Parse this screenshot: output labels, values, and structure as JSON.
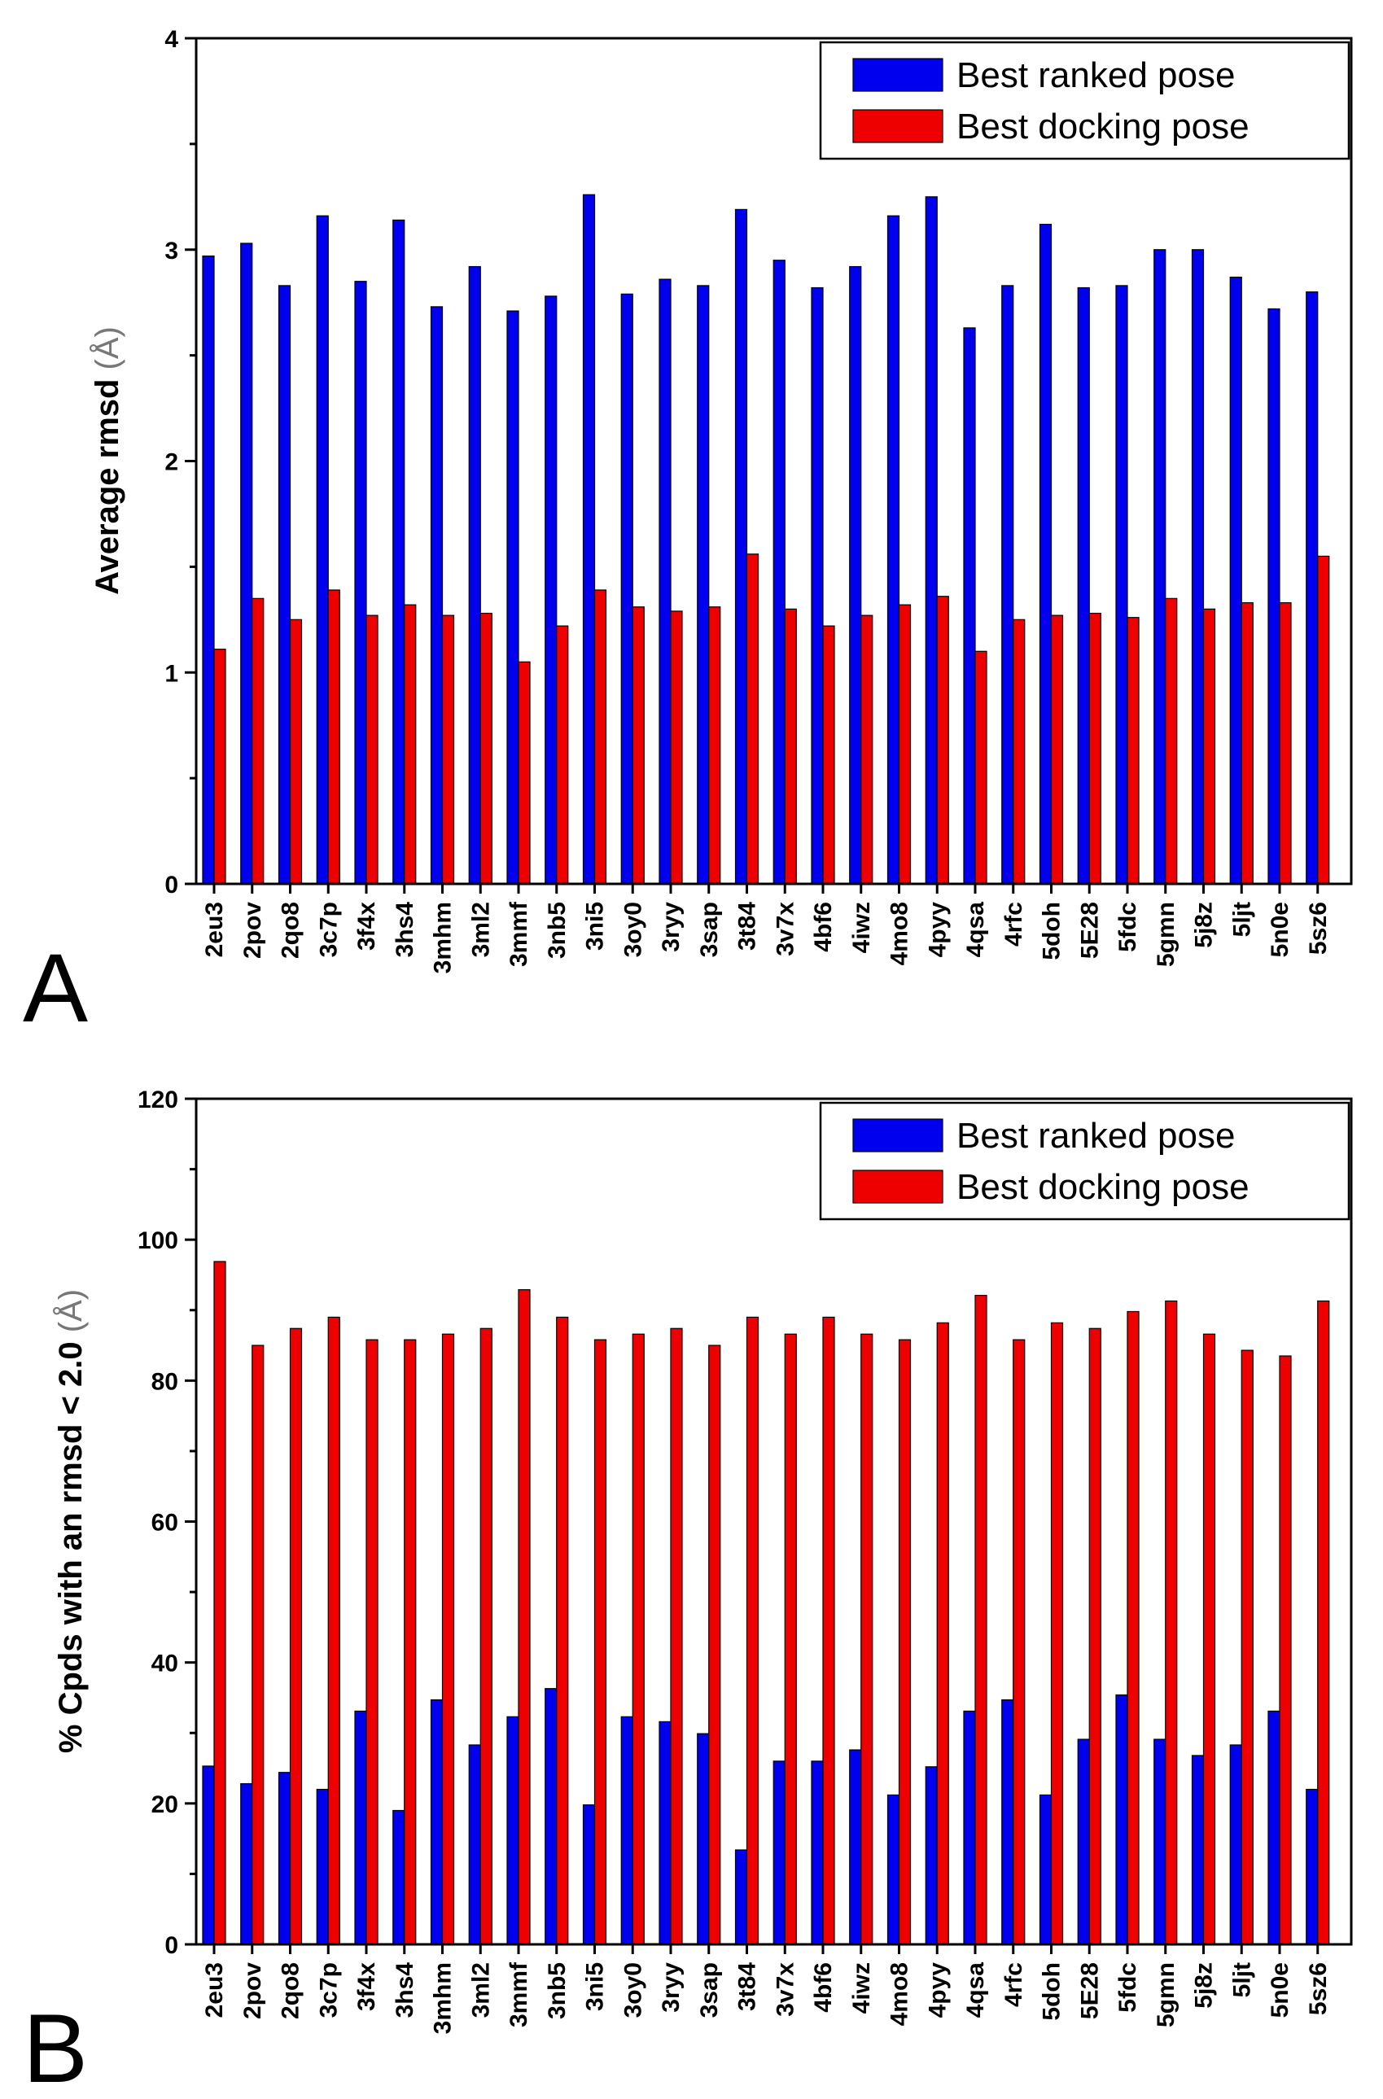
{
  "chart_data": [
    {
      "type": "bar",
      "panel": "A",
      "ylabel": "Average rmsd",
      "ylabel_unit": "(Å)",
      "ylim": [
        0,
        4
      ],
      "yticks": [
        0,
        1,
        2,
        3,
        4
      ],
      "legend_position": "top-right",
      "categories": [
        "2eu3",
        "2pov",
        "2qo8",
        "3c7p",
        "3f4x",
        "3hs4",
        "3mhm",
        "3ml2",
        "3mmf",
        "3nb5",
        "3ni5",
        "3oy0",
        "3ryy",
        "3sap",
        "3t84",
        "3v7x",
        "4bf6",
        "4iwz",
        "4mo8",
        "4pyy",
        "4qsa",
        "4rfc",
        "5doh",
        "5E28",
        "5fdc",
        "5gmn",
        "5j8z",
        "5ljt",
        "5n0e",
        "5sz6"
      ],
      "series": [
        {
          "name": "Best ranked pose",
          "color": "#0000ee",
          "values": [
            2.97,
            3.03,
            2.83,
            3.16,
            2.85,
            3.14,
            2.73,
            2.92,
            2.71,
            2.78,
            3.26,
            2.79,
            2.86,
            2.83,
            3.19,
            2.95,
            2.82,
            2.92,
            3.16,
            3.25,
            2.63,
            2.83,
            3.12,
            2.82,
            2.83,
            3.0,
            3.0,
            2.87,
            2.72,
            2.8
          ]
        },
        {
          "name": "Best docking pose",
          "color": "#ee0000",
          "values": [
            1.11,
            1.35,
            1.25,
            1.39,
            1.27,
            1.32,
            1.27,
            1.28,
            1.05,
            1.22,
            1.39,
            1.31,
            1.29,
            1.31,
            1.56,
            1.3,
            1.22,
            1.27,
            1.32,
            1.36,
            1.1,
            1.25,
            1.27,
            1.28,
            1.26,
            1.35,
            1.3,
            1.33,
            1.33,
            1.55
          ]
        }
      ]
    },
    {
      "type": "bar",
      "panel": "B",
      "ylabel": "% Cpds with an rmsd < 2.0",
      "ylabel_unit": "(Å)",
      "ylim": [
        0,
        120
      ],
      "yticks": [
        0,
        20,
        40,
        60,
        80,
        100,
        120
      ],
      "legend_position": "top-right",
      "categories": [
        "2eu3",
        "2pov",
        "2qo8",
        "3c7p",
        "3f4x",
        "3hs4",
        "3mhm",
        "3ml2",
        "3mmf",
        "3nb5",
        "3ni5",
        "3oy0",
        "3ryy",
        "3sap",
        "3t84",
        "3v7x",
        "4bf6",
        "4iwz",
        "4mo8",
        "4pyy",
        "4qsa",
        "4rfc",
        "5doh",
        "5E28",
        "5fdc",
        "5gmn",
        "5j8z",
        "5ljt",
        "5n0e",
        "5sz6"
      ],
      "series": [
        {
          "name": "Best ranked pose",
          "color": "#0000ee",
          "values": [
            25.3,
            22.8,
            24.4,
            22.0,
            33.1,
            19.0,
            34.7,
            28.3,
            32.3,
            36.3,
            19.8,
            32.3,
            31.6,
            29.9,
            13.4,
            26.0,
            26.0,
            27.6,
            21.2,
            25.2,
            33.1,
            34.7,
            21.2,
            29.1,
            35.4,
            29.1,
            26.8,
            28.3,
            33.1,
            22.0
          ]
        },
        {
          "name": "Best docking pose",
          "color": "#ee0000",
          "values": [
            96.9,
            85.0,
            87.4,
            89.0,
            85.8,
            85.8,
            86.6,
            87.4,
            92.9,
            89.0,
            85.8,
            86.6,
            87.4,
            85.0,
            89.0,
            86.6,
            89.0,
            86.6,
            85.8,
            88.2,
            92.1,
            85.8,
            88.2,
            87.4,
            89.8,
            91.3,
            86.6,
            84.3,
            83.5,
            91.3
          ]
        }
      ]
    }
  ]
}
